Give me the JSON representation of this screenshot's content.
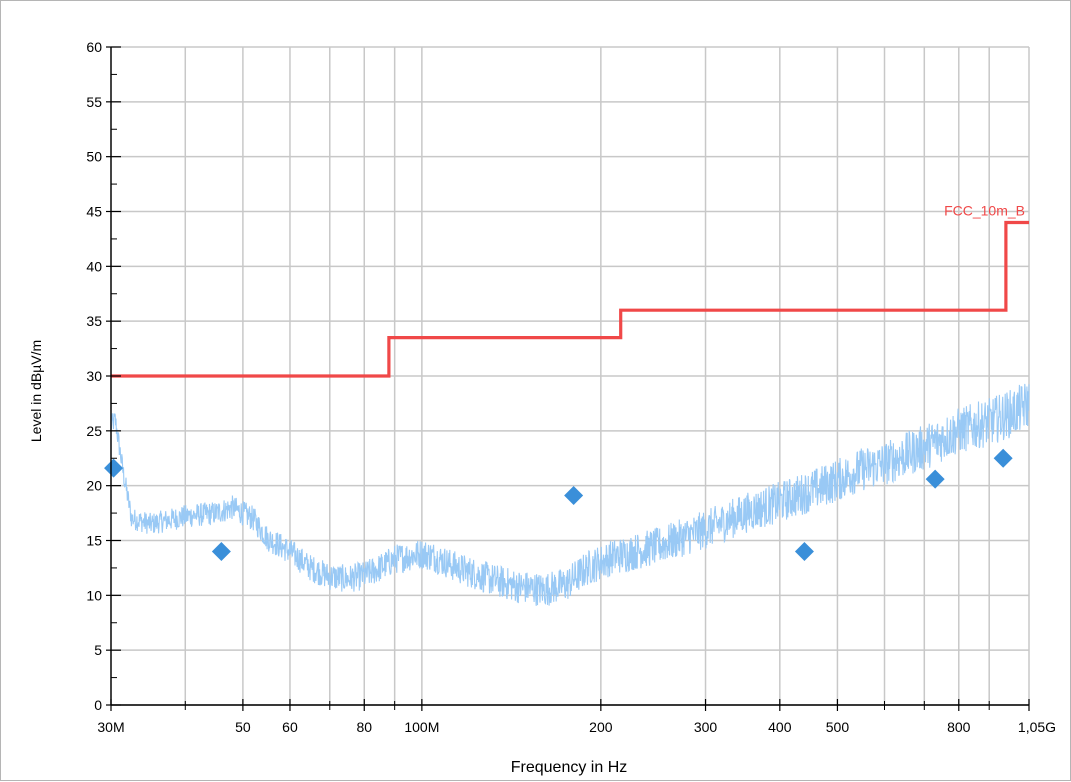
{
  "chart_data": {
    "type": "line",
    "title": "",
    "xlabel": "Frequency in Hz",
    "ylabel": "Level in dBµV/m",
    "x_scale": "log",
    "xlim": [
      30000000,
      1050000000
    ],
    "ylim": [
      0,
      60
    ],
    "grid": true,
    "x_major_ticks": [
      {
        "value": 30000000,
        "label": "30M"
      },
      {
        "value": 50000000,
        "label": "50"
      },
      {
        "value": 60000000,
        "label": "60"
      },
      {
        "value": 80000000,
        "label": "80"
      },
      {
        "value": 100000000,
        "label": "100M"
      },
      {
        "value": 200000000,
        "label": "200"
      },
      {
        "value": 300000000,
        "label": "300"
      },
      {
        "value": 400000000,
        "label": "400"
      },
      {
        "value": 500000000,
        "label": "500"
      },
      {
        "value": 800000000,
        "label": "800"
      },
      {
        "value": 1050000000,
        "label": "1,05G"
      }
    ],
    "x_minor_ticks": [
      40000000,
      70000000,
      90000000,
      600000000,
      700000000,
      900000000
    ],
    "y_ticks": [
      {
        "value": 0,
        "label": "0"
      },
      {
        "value": 5,
        "label": "5"
      },
      {
        "value": 10,
        "label": "10"
      },
      {
        "value": 15,
        "label": "15"
      },
      {
        "value": 20,
        "label": "20"
      },
      {
        "value": 25,
        "label": "25"
      },
      {
        "value": 30,
        "label": "30"
      },
      {
        "value": 35,
        "label": "35"
      },
      {
        "value": 40,
        "label": "40"
      },
      {
        "value": 45,
        "label": "45"
      },
      {
        "value": 50,
        "label": "50"
      },
      {
        "value": 55,
        "label": "55"
      },
      {
        "value": 60,
        "label": "60"
      }
    ],
    "limit_line": {
      "name": "FCC_10m_B",
      "color": "#f04848",
      "points": [
        [
          30000000,
          30.0
        ],
        [
          88000000,
          30.0
        ],
        [
          88000000,
          33.5
        ],
        [
          216000000,
          33.5
        ],
        [
          216000000,
          36.0
        ],
        [
          960000000,
          36.0
        ],
        [
          960000000,
          44.0
        ],
        [
          1050000000,
          44.0
        ]
      ]
    },
    "trace": {
      "color": "#99c9f5",
      "envelope": [
        [
          30000000,
          25.5
        ],
        [
          30500000,
          26.0
        ],
        [
          31500000,
          21.0
        ],
        [
          32500000,
          17.0
        ],
        [
          35000000,
          16.5
        ],
        [
          40000000,
          17.2
        ],
        [
          45000000,
          17.5
        ],
        [
          48000000,
          18.0
        ],
        [
          52000000,
          17.0
        ],
        [
          55000000,
          15.2
        ],
        [
          60000000,
          14.0
        ],
        [
          65000000,
          12.5
        ],
        [
          70000000,
          11.7
        ],
        [
          75000000,
          11.5
        ],
        [
          80000000,
          11.8
        ],
        [
          85000000,
          12.5
        ],
        [
          90000000,
          13.3
        ],
        [
          100000000,
          13.8
        ],
        [
          105000000,
          13.5
        ],
        [
          115000000,
          12.5
        ],
        [
          130000000,
          11.5
        ],
        [
          145000000,
          10.8
        ],
        [
          160000000,
          10.5
        ],
        [
          175000000,
          11.0
        ],
        [
          190000000,
          12.5
        ],
        [
          210000000,
          13.5
        ],
        [
          250000000,
          14.5
        ],
        [
          300000000,
          16.0
        ],
        [
          350000000,
          17.5
        ],
        [
          400000000,
          18.5
        ],
        [
          450000000,
          19.5
        ],
        [
          500000000,
          20.5
        ],
        [
          550000000,
          21.5
        ],
        [
          600000000,
          22.0
        ],
        [
          700000000,
          23.5
        ],
        [
          800000000,
          25.0
        ],
        [
          900000000,
          25.8
        ],
        [
          1000000000,
          26.8
        ],
        [
          1050000000,
          27.5
        ]
      ],
      "noise_amplitude_db": 1.6,
      "samples": 2200
    },
    "markers": {
      "color": "#3a8fd9",
      "points": [
        [
          30300000,
          21.6
        ],
        [
          46000000,
          14.0
        ],
        [
          180000000,
          19.1
        ],
        [
          440000000,
          14.0
        ],
        [
          730000000,
          20.6
        ],
        [
          950000000,
          22.5
        ]
      ]
    }
  }
}
